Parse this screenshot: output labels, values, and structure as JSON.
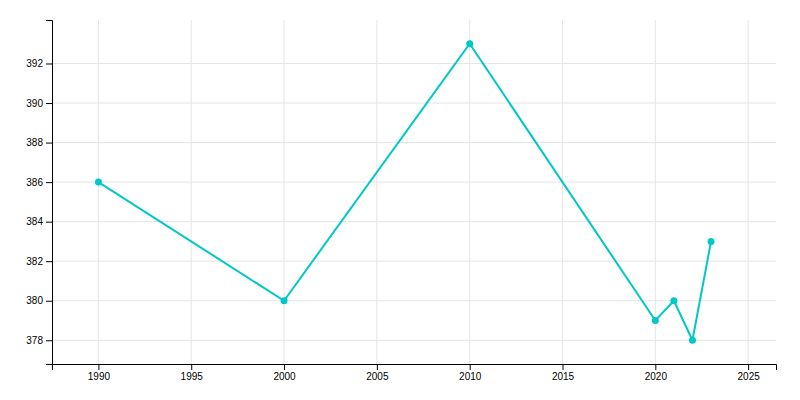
{
  "chart_data": {
    "type": "line",
    "x": [
      1990,
      2000,
      2010,
      2020,
      2021,
      2022,
      2023
    ],
    "values": [
      386,
      380,
      393,
      379,
      380,
      378,
      383
    ],
    "color": "#00C8C8",
    "marker": "circle",
    "xlim": [
      1987.5,
      2026.5
    ],
    "ylim": [
      376.8,
      394.2
    ],
    "xticks": [
      1990,
      1995,
      2000,
      2005,
      2010,
      2015,
      2020,
      2025
    ],
    "yticks": [
      378,
      380,
      382,
      384,
      386,
      388,
      390,
      392
    ],
    "grid": true
  }
}
